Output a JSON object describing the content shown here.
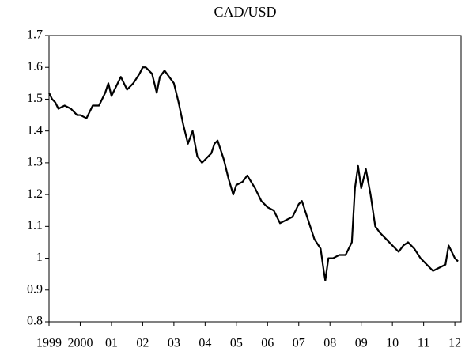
{
  "chart_data": {
    "type": "line",
    "title": "CAD/USD",
    "x": [
      1999.0,
      1999.1,
      1999.2,
      1999.3,
      1999.5,
      1999.7,
      1999.9,
      2000.0,
      2000.2,
      2000.4,
      2000.6,
      2000.8,
      2000.9,
      2001.0,
      2001.2,
      2001.3,
      2001.5,
      2001.7,
      2001.9,
      2002.0,
      2002.1,
      2002.3,
      2002.45,
      2002.55,
      2002.7,
      2002.85,
      2003.0,
      2003.15,
      2003.3,
      2003.45,
      2003.6,
      2003.75,
      2003.9,
      2004.0,
      2004.2,
      2004.3,
      2004.4,
      2004.6,
      2004.75,
      2004.9,
      2005.0,
      2005.2,
      2005.35,
      2005.6,
      2005.8,
      2006.0,
      2006.2,
      2006.4,
      2006.6,
      2006.8,
      2007.0,
      2007.1,
      2007.3,
      2007.5,
      2007.7,
      2007.8,
      2007.85,
      2007.95,
      2008.1,
      2008.3,
      2008.5,
      2008.7,
      2008.8,
      2008.9,
      2009.0,
      2009.15,
      2009.3,
      2009.45,
      2009.6,
      2009.8,
      2010.0,
      2010.2,
      2010.35,
      2010.5,
      2010.7,
      2010.9,
      2011.1,
      2011.3,
      2011.5,
      2011.7,
      2011.8,
      2011.9,
      2012.0,
      2012.1
    ],
    "series": [
      {
        "name": "CAD/USD",
        "color": "#000000",
        "values": [
          1.52,
          1.5,
          1.49,
          1.47,
          1.48,
          1.47,
          1.45,
          1.45,
          1.44,
          1.48,
          1.48,
          1.52,
          1.55,
          1.51,
          1.55,
          1.57,
          1.53,
          1.55,
          1.58,
          1.6,
          1.6,
          1.58,
          1.52,
          1.57,
          1.59,
          1.57,
          1.55,
          1.49,
          1.42,
          1.36,
          1.4,
          1.32,
          1.3,
          1.31,
          1.33,
          1.36,
          1.37,
          1.31,
          1.25,
          1.2,
          1.23,
          1.24,
          1.26,
          1.22,
          1.18,
          1.16,
          1.15,
          1.11,
          1.12,
          1.13,
          1.17,
          1.18,
          1.12,
          1.06,
          1.03,
          0.96,
          0.93,
          1.0,
          1.0,
          1.01,
          1.01,
          1.05,
          1.22,
          1.29,
          1.22,
          1.28,
          1.2,
          1.1,
          1.08,
          1.06,
          1.04,
          1.02,
          1.04,
          1.05,
          1.03,
          1.0,
          0.98,
          0.96,
          0.97,
          0.98,
          1.04,
          1.02,
          1.0,
          0.99
        ]
      }
    ],
    "xlim": [
      1999,
      2012.2
    ],
    "xticks": [
      {
        "value": 1999,
        "label": "1999"
      },
      {
        "value": 2000,
        "label": "2000"
      },
      {
        "value": 2001,
        "label": "01"
      },
      {
        "value": 2002,
        "label": "02"
      },
      {
        "value": 2003,
        "label": "03"
      },
      {
        "value": 2004,
        "label": "04"
      },
      {
        "value": 2005,
        "label": "05"
      },
      {
        "value": 2006,
        "label": "06"
      },
      {
        "value": 2007,
        "label": "07"
      },
      {
        "value": 2008,
        "label": "08"
      },
      {
        "value": 2009,
        "label": "09"
      },
      {
        "value": 2010,
        "label": "10"
      },
      {
        "value": 2011,
        "label": "11"
      },
      {
        "value": 2012,
        "label": "12"
      }
    ],
    "ylim": [
      0.8,
      1.7
    ],
    "yticks": [
      0.8,
      0.9,
      1,
      1.1,
      1.2,
      1.3,
      1.4,
      1.5,
      1.6,
      1.7
    ],
    "grid": false
  }
}
